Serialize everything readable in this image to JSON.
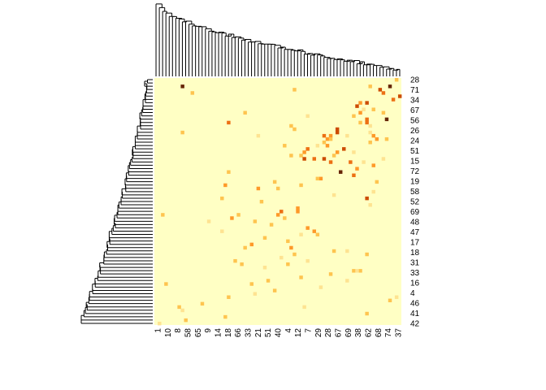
{
  "chart_data": {
    "type": "heatmap",
    "title": "",
    "xlabel": "",
    "ylabel": "",
    "col_labels": [
      "1",
      "10",
      "8",
      "58",
      "65",
      "9",
      "14",
      "18",
      "66",
      "33",
      "21",
      "51",
      "40",
      "4",
      "12",
      "7",
      "29",
      "28",
      "67",
      "69",
      "38",
      "62",
      "68",
      "74",
      "37"
    ],
    "row_labels": [
      "28",
      "71",
      "34",
      "67",
      "56",
      "26",
      "24",
      "51",
      "15",
      "72",
      "19",
      "58",
      "52",
      "69",
      "48",
      "47",
      "17",
      "18",
      "31",
      "33",
      "16",
      "4",
      "46",
      "41",
      "42"
    ],
    "n_cols": 75,
    "n_rows": 75,
    "value_range": [
      0,
      1
    ],
    "colors": {
      "background": "#ffffc4",
      "low": "#fee391",
      "mid": "#fec44f",
      "high": "#fe9929",
      "higher": "#ec7014",
      "highest": "#cc4c02",
      "max": "#662506"
    },
    "dendrograms": {
      "top": true,
      "left": true
    },
    "cells": [
      [
        0,
        73,
        0.35
      ],
      [
        2,
        71,
        0.95
      ],
      [
        2,
        65,
        0.35
      ],
      [
        3,
        68,
        0.8
      ],
      [
        3,
        42,
        0.3
      ],
      [
        4,
        69,
        0.7
      ],
      [
        5,
        74,
        0.8
      ],
      [
        4,
        11,
        0.35
      ],
      [
        2,
        8,
        0.9
      ],
      [
        5,
        75,
        0.95
      ],
      [
        6,
        72,
        0.6
      ],
      [
        7,
        62,
        0.55
      ],
      [
        7,
        64,
        0.75
      ],
      [
        8,
        61,
        0.85
      ],
      [
        9,
        66,
        0.4
      ],
      [
        9,
        63,
        0.25
      ],
      [
        10,
        62,
        0.55
      ],
      [
        11,
        60,
        0.3
      ],
      [
        12,
        70,
        0.9
      ],
      [
        12,
        64,
        0.7
      ],
      [
        13,
        64,
        0.65
      ],
      [
        13,
        62,
        0.3
      ],
      [
        14,
        65,
        0.25
      ],
      [
        10,
        69,
        0.3
      ],
      [
        15,
        55,
        0.75
      ],
      [
        16,
        55,
        0.8
      ],
      [
        16,
        65,
        0.25
      ],
      [
        17,
        51,
        0.6
      ],
      [
        17,
        53,
        0.45
      ],
      [
        18,
        52,
        0.5
      ],
      [
        18,
        53,
        0.3
      ],
      [
        19,
        65,
        0.35
      ],
      [
        19,
        51,
        0.35
      ],
      [
        20,
        52,
        0.5
      ],
      [
        20,
        49,
        0.25
      ],
      [
        21,
        46,
        0.6
      ],
      [
        22,
        45,
        0.45
      ],
      [
        21,
        57,
        0.85
      ],
      [
        22,
        55,
        0.5
      ],
      [
        23,
        44,
        0.3
      ],
      [
        23,
        54,
        0.35
      ],
      [
        24,
        51,
        0.85
      ],
      [
        24,
        48,
        0.6
      ],
      [
        25,
        53,
        0.65
      ],
      [
        17,
        31,
        0.2
      ],
      [
        16,
        8,
        0.3
      ],
      [
        17,
        58,
        0.25
      ],
      [
        13,
        22,
        0.6
      ],
      [
        11,
        46,
        0.25
      ],
      [
        10,
        27,
        0.3
      ],
      [
        14,
        41,
        0.3
      ],
      [
        15,
        42,
        0.3
      ],
      [
        17,
        66,
        0.55
      ],
      [
        18,
        67,
        0.45
      ],
      [
        18,
        70,
        0.3
      ],
      [
        20,
        39,
        0.3
      ],
      [
        22,
        60,
        0.25
      ],
      [
        23,
        41,
        0.3
      ],
      [
        24,
        45,
        0.75
      ],
      [
        25,
        59,
        0.6
      ],
      [
        26,
        66,
        0.55
      ],
      [
        24,
        69,
        0.25
      ],
      [
        25,
        63,
        0.25
      ],
      [
        27,
        61,
        0.55
      ],
      [
        28,
        56,
        0.95
      ],
      [
        29,
        60,
        0.6
      ],
      [
        30,
        50,
        0.45
      ],
      [
        31,
        67,
        0.4
      ],
      [
        32,
        44,
        0.35
      ],
      [
        28,
        22,
        0.3
      ],
      [
        30,
        49,
        0.3
      ],
      [
        31,
        36,
        0.35
      ],
      [
        32,
        21,
        0.45
      ],
      [
        33,
        31,
        0.55
      ],
      [
        33,
        37,
        0.3
      ],
      [
        34,
        66,
        0.2
      ],
      [
        35,
        54,
        0.25
      ],
      [
        36,
        64,
        0.75
      ],
      [
        37,
        32,
        0.35
      ],
      [
        38,
        65,
        0.2
      ],
      [
        39,
        43,
        0.55
      ],
      [
        40,
        43,
        0.55
      ],
      [
        40,
        38,
        0.7
      ],
      [
        41,
        37,
        0.5
      ],
      [
        41,
        25,
        0.3
      ],
      [
        42,
        39,
        0.3
      ],
      [
        42,
        23,
        0.45
      ],
      [
        43,
        30,
        0.3
      ],
      [
        43,
        16,
        0.25
      ],
      [
        44,
        35,
        0.3
      ],
      [
        45,
        46,
        0.45
      ],
      [
        46,
        48,
        0.5
      ],
      [
        46,
        20,
        0.25
      ],
      [
        47,
        49,
        0.3
      ],
      [
        47,
        44,
        0.25
      ],
      [
        48,
        33,
        0.35
      ],
      [
        49,
        40,
        0.35
      ],
      [
        50,
        29,
        0.45
      ],
      [
        51,
        41,
        0.55
      ],
      [
        51,
        27,
        0.35
      ],
      [
        52,
        54,
        0.3
      ],
      [
        52,
        58,
        0.25
      ],
      [
        53,
        42,
        0.4
      ],
      [
        53,
        64,
        0.3
      ],
      [
        54,
        38,
        0.25
      ],
      [
        55,
        24,
        0.35
      ],
      [
        55,
        46,
        0.2
      ],
      [
        56,
        40,
        0.3
      ],
      [
        56,
        26,
        0.3
      ],
      [
        57,
        33,
        0.25
      ],
      [
        58,
        60,
        0.35
      ],
      [
        58,
        62,
        0.3
      ],
      [
        59,
        53,
        0.3
      ],
      [
        60,
        44,
        0.35
      ],
      [
        61,
        34,
        0.3
      ],
      [
        61,
        58,
        0.25
      ],
      [
        62,
        29,
        0.35
      ],
      [
        63,
        50,
        0.25
      ],
      [
        64,
        36,
        0.3
      ],
      [
        65,
        30,
        0.25
      ],
      [
        66,
        22,
        0.3
      ],
      [
        67,
        71,
        0.35
      ],
      [
        68,
        14,
        0.35
      ],
      [
        69,
        45,
        0.25
      ],
      [
        70,
        8,
        0.25
      ],
      [
        71,
        64,
        0.3
      ],
      [
        72,
        21,
        0.3
      ],
      [
        73,
        9,
        0.35
      ],
      [
        74,
        1,
        0.25
      ],
      [
        66,
        73,
        0.25
      ],
      [
        69,
        7,
        0.3
      ],
      [
        62,
        3,
        0.3
      ],
      [
        58,
        61,
        0.25
      ],
      [
        41,
        2,
        0.3
      ],
      [
        36,
        20,
        0.3
      ]
    ]
  }
}
